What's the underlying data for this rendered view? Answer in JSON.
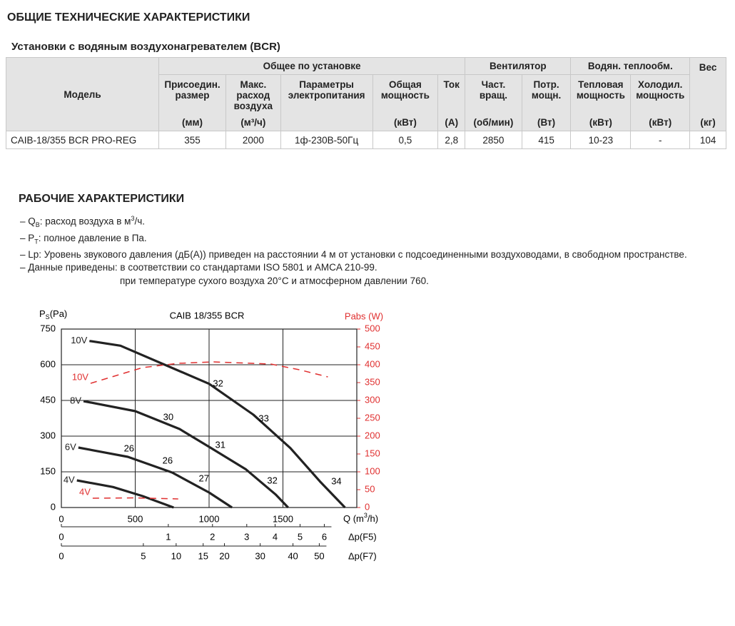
{
  "header": {
    "title": "ОБЩИЕ ТЕХНИЧЕСКИЕ ХАРАКТЕРИСТИКИ",
    "subtitle": "Установки с водяным воздухонагревателем (BCR)"
  },
  "table": {
    "groups": [
      "Модель",
      "Общее по установке",
      "Вентилятор",
      "Водян. теплообм.",
      "Вес"
    ],
    "columns": [
      {
        "name": "Присоедин. размер",
        "unit": "(мм)"
      },
      {
        "name": "Макс. расход воздуха",
        "unit": "(м³/ч)"
      },
      {
        "name": "Параметры электропитания"
      },
      {
        "name": "Общая мощность",
        "unit": "(кВт)"
      },
      {
        "name": "Ток",
        "unit": "(А)"
      },
      {
        "name": "Част. вращ.",
        "unit": "(об/мин)"
      },
      {
        "name": "Потр. мощн.",
        "unit": "(Вт)"
      },
      {
        "name": "Тепловая мощность",
        "unit": "(кВт)"
      },
      {
        "name": "Холодил. мощность",
        "unit": "(кВт)"
      }
    ],
    "weight_unit": "(кг)",
    "rows": [
      [
        "CAIB-18/355 BCR PRO-REG",
        355,
        2000,
        "1ф-230В-50Гц",
        "0,5",
        "2,8",
        2850,
        415,
        "10-23",
        "-",
        104
      ]
    ]
  },
  "section": {
    "title": "РАБОЧИЕ ХАРАКТЕРИСТИКИ",
    "notes": [
      [
        {
          "text": "– Q"
        },
        {
          "text": "В",
          "style": "sub"
        },
        {
          "text": ": расход воздуха в м"
        },
        {
          "text": "3",
          "style": "sup"
        },
        {
          "text": "/ч."
        }
      ],
      [
        {
          "text": "– P"
        },
        {
          "text": "T",
          "style": "sub"
        },
        {
          "text": ": полное давление в Па."
        }
      ],
      [
        {
          "text": "– Lp: Уровень звукового давления (дБ(А)) приведен на расстоянии 4 м от установки с подсоединенными воздуховодами, в свободном пространстве."
        }
      ],
      [
        {
          "text": "– Данные приведены:  в соответствии со стандартами ISO 5801 и AMCA 210-99."
        }
      ]
    ],
    "notes_cont": "при температуре сухого воздуха 20°C и атмосферном давлении 760."
  },
  "chart_data": {
    "type": "line",
    "title": "CAIB 18/355 BCR",
    "ylabel": [
      "P",
      "S",
      "(Pa)"
    ],
    "y2label": "Pabs (W)",
    "xlabel": [
      "Q (m",
      "3",
      "/h)"
    ],
    "xlim": [
      0,
      2000
    ],
    "ylim": [
      0,
      750
    ],
    "y2lim": [
      0,
      500
    ],
    "xticks": [
      0,
      500,
      1000,
      1500
    ],
    "yticks": [
      0,
      150,
      300,
      450,
      600,
      750
    ],
    "y2ticks": [
      0,
      50,
      100,
      150,
      200,
      250,
      300,
      350,
      400,
      450,
      500
    ],
    "grid": true,
    "series": [
      {
        "name": "10V",
        "color": "#222222",
        "x": [
          190,
          400,
          700,
          1000,
          1300,
          1550,
          1750,
          1920
        ],
        "values": [
          700,
          680,
          600,
          520,
          390,
          250,
          110,
          0
        ]
      },
      {
        "name": "8V",
        "color": "#222222",
        "x": [
          150,
          500,
          800,
          1000,
          1250,
          1450,
          1535
        ],
        "values": [
          447,
          405,
          330,
          255,
          160,
          55,
          0
        ]
      },
      {
        "name": "6V",
        "color": "#222222",
        "x": [
          115,
          450,
          750,
          1000,
          1155
        ],
        "values": [
          252,
          213,
          147,
          63,
          0
        ]
      },
      {
        "name": "4V",
        "color": "#222222",
        "x": [
          105,
          350,
          550,
          760
        ],
        "values": [
          114,
          86,
          48,
          0
        ]
      },
      {
        "name": "10V",
        "color": "#e03030",
        "axis": "y2",
        "dashed": true,
        "x": [
          198,
          550,
          791,
          1032,
          1418,
          1611,
          1804
        ],
        "values": [
          348,
          392,
          404,
          408,
          402,
          386,
          366
        ]
      },
      {
        "name": "4V",
        "color": "#e03030",
        "axis": "y2",
        "dashed": true,
        "x": [
          212,
          500,
          791
        ],
        "values": [
          26,
          27,
          24
        ]
      }
    ],
    "annotations": [
      {
        "value": 32,
        "x": 1061,
        "y": 519
      },
      {
        "value": 33,
        "x": 1370,
        "y": 372
      },
      {
        "value": 34,
        "x": 1862,
        "y": 108
      },
      {
        "value": 30,
        "x": 724,
        "y": 378
      },
      {
        "value": 31,
        "x": 1076,
        "y": 261
      },
      {
        "value": 32,
        "x": 1428,
        "y": 111
      },
      {
        "value": 26,
        "x": 458,
        "y": 246
      },
      {
        "value": 26,
        "x": 719,
        "y": 195
      },
      {
        "value": 27,
        "x": 965,
        "y": 120
      }
    ],
    "extra_axes": [
      {
        "label": "Δp(F5)",
        "values": [
          0,
          1,
          2,
          3,
          4,
          5,
          6
        ],
        "x": [
          0,
          724,
          1023,
          1255,
          1447,
          1616,
          1780
        ]
      },
      {
        "label": "Δp(F7)",
        "values": [
          0,
          5,
          10,
          15,
          20,
          30,
          40,
          50
        ],
        "x": [
          0,
          555,
          777,
          960,
          1104,
          1346,
          1568,
          1746
        ]
      }
    ]
  }
}
